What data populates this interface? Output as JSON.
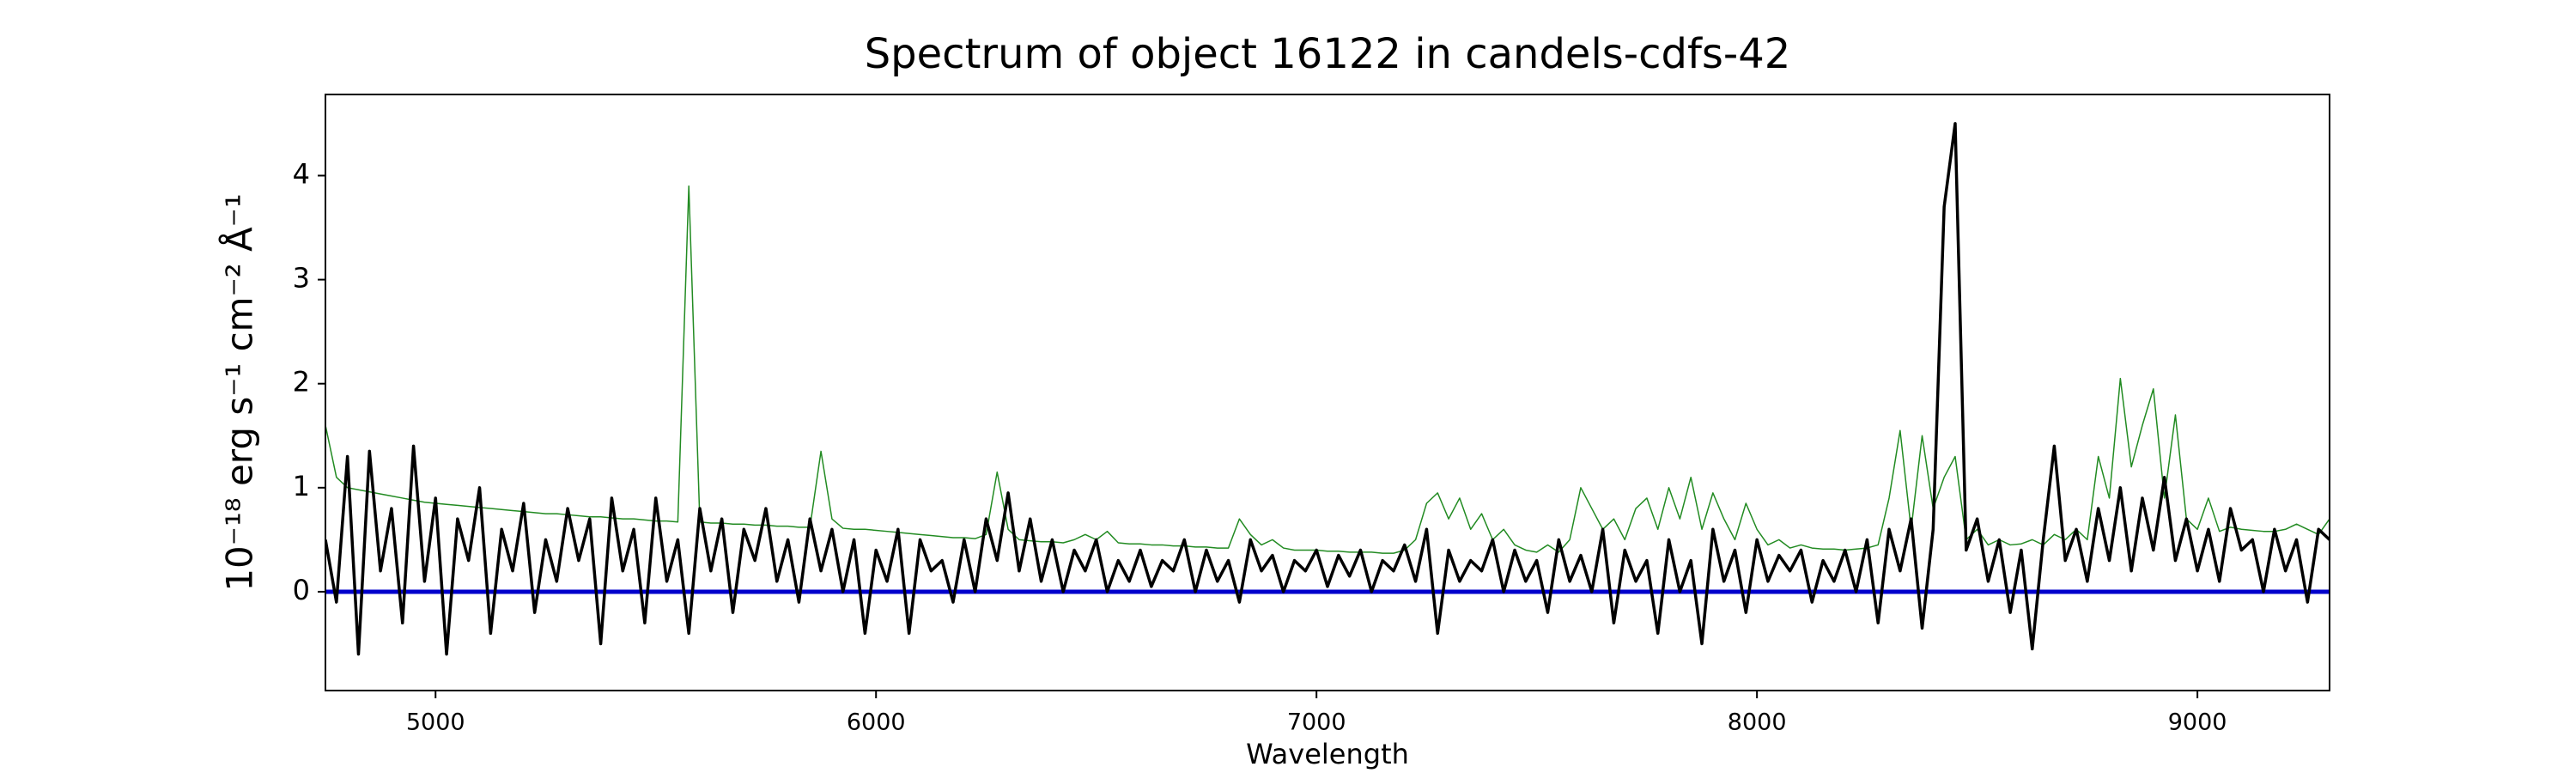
{
  "chart_data": {
    "type": "line",
    "title": "Spectrum of object 16122 in candels-cdfs-42",
    "xlabel": "Wavelength",
    "ylabel": "10⁻¹⁸ erg s⁻¹ cm⁻² Å⁻¹",
    "xlim": [
      4750,
      9300
    ],
    "ylim": [
      -0.95,
      4.78
    ],
    "xticks": [
      5000,
      6000,
      7000,
      8000,
      9000
    ],
    "yticks": [
      0,
      1,
      2,
      3,
      4
    ],
    "grid": false,
    "hlines": [
      {
        "y": 0,
        "color": "#0000cc"
      }
    ],
    "x": [
      4750,
      4775,
      4800,
      4825,
      4850,
      4875,
      4900,
      4925,
      4950,
      4975,
      5000,
      5025,
      5050,
      5075,
      5100,
      5125,
      5150,
      5175,
      5200,
      5225,
      5250,
      5275,
      5300,
      5325,
      5350,
      5375,
      5400,
      5425,
      5450,
      5475,
      5500,
      5525,
      5550,
      5575,
      5600,
      5625,
      5650,
      5675,
      5700,
      5725,
      5750,
      5775,
      5800,
      5825,
      5850,
      5875,
      5900,
      5925,
      5950,
      5975,
      6000,
      6025,
      6050,
      6075,
      6100,
      6125,
      6150,
      6175,
      6200,
      6225,
      6250,
      6275,
      6300,
      6325,
      6350,
      6375,
      6400,
      6425,
      6450,
      6475,
      6500,
      6525,
      6550,
      6575,
      6600,
      6625,
      6650,
      6675,
      6700,
      6725,
      6750,
      6775,
      6800,
      6825,
      6850,
      6875,
      6900,
      6925,
      6950,
      6975,
      7000,
      7025,
      7050,
      7075,
      7100,
      7125,
      7150,
      7175,
      7200,
      7225,
      7250,
      7275,
      7300,
      7325,
      7350,
      7375,
      7400,
      7425,
      7450,
      7475,
      7500,
      7525,
      7550,
      7575,
      7600,
      7625,
      7650,
      7675,
      7700,
      7725,
      7750,
      7775,
      7800,
      7825,
      7850,
      7875,
      7900,
      7925,
      7950,
      7975,
      8000,
      8025,
      8050,
      8075,
      8100,
      8125,
      8150,
      8175,
      8200,
      8225,
      8250,
      8275,
      8300,
      8325,
      8350,
      8375,
      8400,
      8425,
      8450,
      8475,
      8500,
      8525,
      8550,
      8575,
      8600,
      8625,
      8650,
      8675,
      8700,
      8725,
      8750,
      8775,
      8800,
      8825,
      8850,
      8875,
      8900,
      8925,
      8950,
      8975,
      9000,
      9025,
      9050,
      9075,
      9100,
      9125,
      9150,
      9175,
      9200,
      9225,
      9250,
      9275,
      9300
    ],
    "series": [
      {
        "color": "#228b22",
        "linewidth": 1.5,
        "values": [
          1.6,
          1.1,
          1.0,
          0.98,
          0.96,
          0.94,
          0.92,
          0.9,
          0.88,
          0.86,
          0.85,
          0.84,
          0.83,
          0.82,
          0.81,
          0.8,
          0.79,
          0.78,
          0.77,
          0.76,
          0.75,
          0.75,
          0.74,
          0.73,
          0.72,
          0.72,
          0.71,
          0.7,
          0.7,
          0.69,
          0.68,
          0.68,
          0.67,
          3.9,
          0.67,
          0.66,
          0.66,
          0.65,
          0.65,
          0.64,
          0.64,
          0.63,
          0.63,
          0.62,
          0.62,
          1.35,
          0.7,
          0.61,
          0.6,
          0.6,
          0.59,
          0.58,
          0.57,
          0.56,
          0.55,
          0.54,
          0.53,
          0.52,
          0.52,
          0.51,
          0.55,
          1.15,
          0.6,
          0.5,
          0.49,
          0.48,
          0.48,
          0.47,
          0.5,
          0.55,
          0.5,
          0.58,
          0.47,
          0.46,
          0.46,
          0.45,
          0.45,
          0.44,
          0.44,
          0.43,
          0.43,
          0.42,
          0.42,
          0.7,
          0.55,
          0.45,
          0.5,
          0.42,
          0.4,
          0.4,
          0.4,
          0.39,
          0.39,
          0.38,
          0.38,
          0.38,
          0.37,
          0.37,
          0.4,
          0.5,
          0.85,
          0.95,
          0.7,
          0.9,
          0.6,
          0.75,
          0.5,
          0.6,
          0.45,
          0.4,
          0.38,
          0.45,
          0.38,
          0.5,
          1.0,
          0.8,
          0.6,
          0.7,
          0.5,
          0.8,
          0.9,
          0.6,
          1.0,
          0.7,
          1.1,
          0.6,
          0.95,
          0.7,
          0.5,
          0.85,
          0.6,
          0.45,
          0.5,
          0.42,
          0.45,
          0.42,
          0.41,
          0.41,
          0.4,
          0.41,
          0.42,
          0.45,
          0.9,
          1.55,
          0.6,
          1.5,
          0.8,
          1.1,
          1.3,
          0.5,
          0.6,
          0.45,
          0.5,
          0.45,
          0.46,
          0.5,
          0.45,
          0.55,
          0.5,
          0.6,
          0.5,
          1.3,
          0.9,
          2.05,
          1.2,
          1.6,
          1.95,
          0.9,
          1.7,
          0.7,
          0.6,
          0.9,
          0.58,
          0.62,
          0.6,
          0.59,
          0.58,
          0.58,
          0.6,
          0.65,
          0.6,
          0.55,
          0.7
        ]
      },
      {
        "color": "#000000",
        "linewidth": 3.5,
        "values": [
          0.5,
          -0.1,
          1.3,
          -0.6,
          1.35,
          0.2,
          0.8,
          -0.3,
          1.4,
          0.1,
          0.9,
          -0.6,
          0.7,
          0.3,
          1.0,
          -0.4,
          0.6,
          0.2,
          0.85,
          -0.2,
          0.5,
          0.1,
          0.8,
          0.3,
          0.7,
          -0.5,
          0.9,
          0.2,
          0.6,
          -0.3,
          0.9,
          0.1,
          0.5,
          -0.4,
          0.8,
          0.2,
          0.7,
          -0.2,
          0.6,
          0.3,
          0.8,
          0.1,
          0.5,
          -0.1,
          0.7,
          0.2,
          0.6,
          0.0,
          0.5,
          -0.4,
          0.4,
          0.1,
          0.6,
          -0.4,
          0.5,
          0.2,
          0.3,
          -0.1,
          0.5,
          0.0,
          0.7,
          0.3,
          0.95,
          0.2,
          0.7,
          0.1,
          0.5,
          0.0,
          0.4,
          0.2,
          0.5,
          0.0,
          0.3,
          0.1,
          0.4,
          0.05,
          0.3,
          0.2,
          0.5,
          0.0,
          0.4,
          0.1,
          0.3,
          -0.1,
          0.5,
          0.2,
          0.35,
          0.0,
          0.3,
          0.2,
          0.4,
          0.05,
          0.35,
          0.15,
          0.4,
          0.0,
          0.3,
          0.2,
          0.45,
          0.1,
          0.6,
          -0.4,
          0.4,
          0.1,
          0.3,
          0.2,
          0.5,
          0.0,
          0.4,
          0.1,
          0.3,
          -0.2,
          0.5,
          0.1,
          0.35,
          0.0,
          0.6,
          -0.3,
          0.4,
          0.1,
          0.3,
          -0.4,
          0.5,
          0.0,
          0.3,
          -0.5,
          0.6,
          0.1,
          0.4,
          -0.2,
          0.5,
          0.1,
          0.35,
          0.2,
          0.4,
          -0.1,
          0.3,
          0.1,
          0.4,
          0.0,
          0.5,
          -0.3,
          0.6,
          0.2,
          0.7,
          -0.35,
          0.6,
          3.7,
          4.5,
          0.4,
          0.7,
          0.1,
          0.5,
          -0.2,
          0.4,
          -0.55,
          0.5,
          1.4,
          0.3,
          0.6,
          0.1,
          0.8,
          0.3,
          1.0,
          0.2,
          0.9,
          0.4,
          1.1,
          0.3,
          0.7,
          0.2,
          0.6,
          0.1,
          0.8,
          0.4,
          0.5,
          0.0,
          0.6,
          0.2,
          0.5,
          -0.1,
          0.6,
          0.5
        ]
      }
    ]
  }
}
